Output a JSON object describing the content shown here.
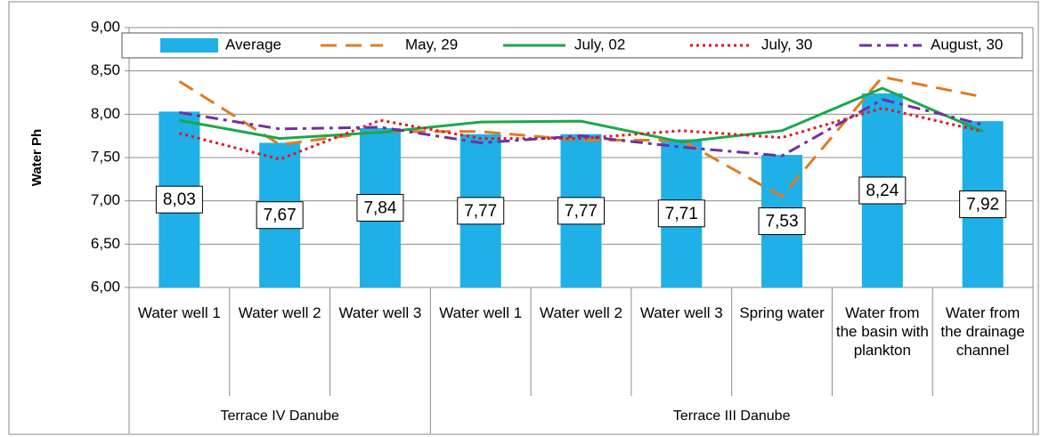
{
  "chart_data": {
    "type": "bar_line",
    "y_label": "Water Ph",
    "groups": [
      {
        "name": "Terrace IV Danube",
        "categories": [
          "Water well 1",
          "Water well 2",
          "Water well 3"
        ]
      },
      {
        "name": "Terrace III Danube",
        "categories": [
          "Water well 1",
          "Water well 2",
          "Water well 3",
          "Spring water",
          "Water from the basin with plankton",
          "Water from the drainage channel"
        ]
      }
    ],
    "series": [
      {
        "name": "Average",
        "kind": "bar",
        "color": "#1eb0e6",
        "values": [
          8.03,
          7.67,
          7.84,
          7.77,
          7.77,
          7.71,
          7.53,
          8.24,
          7.92
        ],
        "value_labels": [
          "8,03",
          "7,67",
          "7,84",
          "7,77",
          "7,77",
          "7,71",
          "7,53",
          "8,24",
          "7,92"
        ]
      },
      {
        "name": "May, 29",
        "kind": "line",
        "style": "dashed",
        "color": "#e07b22",
        "values": [
          8.38,
          7.65,
          7.8,
          7.8,
          7.7,
          7.7,
          7.05,
          8.43,
          8.2
        ]
      },
      {
        "name": "July, 02",
        "kind": "line",
        "style": "solid",
        "color": "#1aa84a",
        "values": [
          7.93,
          7.72,
          7.79,
          7.91,
          7.92,
          7.68,
          7.81,
          8.3,
          7.8
        ]
      },
      {
        "name": "July, 30",
        "kind": "line",
        "style": "dotted",
        "color": "#e8161e",
        "values": [
          7.78,
          7.48,
          7.93,
          7.72,
          7.72,
          7.81,
          7.73,
          8.07,
          7.8
        ]
      },
      {
        "name": "August, 30",
        "kind": "line",
        "style": "dashdot",
        "color": "#7030a0",
        "values": [
          8.02,
          7.83,
          7.85,
          7.67,
          7.75,
          7.62,
          7.52,
          8.17,
          7.88
        ]
      }
    ],
    "ylim": [
      6,
      9
    ],
    "yticks": [
      {
        "value": 6,
        "label": "6,00"
      },
      {
        "value": 6.5,
        "label": "6,50"
      },
      {
        "value": 7,
        "label": "7,00"
      },
      {
        "value": 7.5,
        "label": "7,50"
      },
      {
        "value": 8,
        "label": "8,00"
      },
      {
        "value": 8.5,
        "label": "8,50"
      },
      {
        "value": 9,
        "label": "9,00"
      }
    ],
    "grid": true,
    "legend": "top"
  }
}
